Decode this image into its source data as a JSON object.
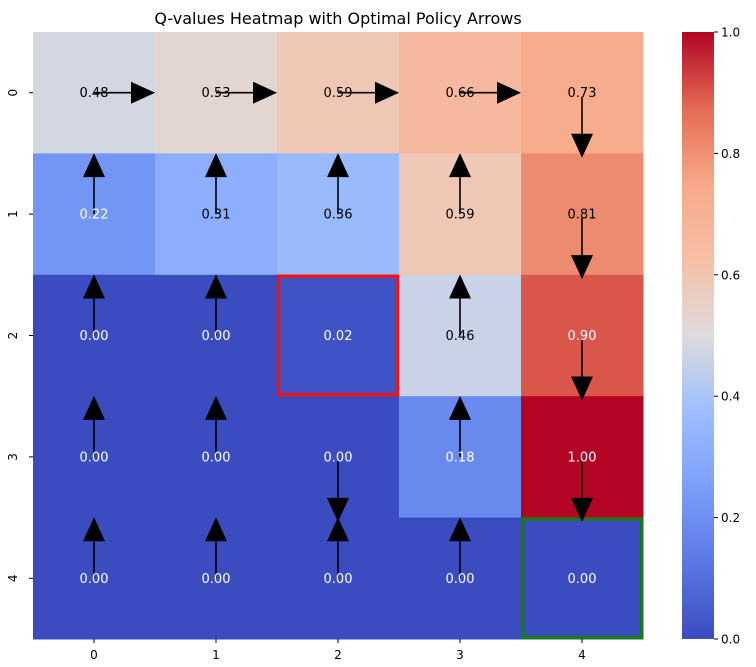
{
  "chart_data": {
    "type": "heatmap",
    "title": "Q-values Heatmap with Optimal Policy Arrows",
    "x_ticks": [
      "0",
      "1",
      "2",
      "3",
      "4"
    ],
    "y_ticks": [
      "0",
      "1",
      "2",
      "3",
      "4"
    ],
    "values": [
      [
        0.48,
        0.53,
        0.59,
        0.66,
        0.73
      ],
      [
        0.22,
        0.31,
        0.36,
        0.59,
        0.81
      ],
      [
        0.0,
        0.0,
        0.02,
        0.46,
        0.9
      ],
      [
        0.0,
        0.0,
        0.0,
        0.18,
        1.0
      ],
      [
        0.0,
        0.0,
        0.0,
        0.0,
        0.0
      ]
    ],
    "labels": [
      [
        "0.48",
        "0.53",
        "0.59",
        "0.66",
        "0.73"
      ],
      [
        "0.22",
        "0.31",
        "0.36",
        "0.59",
        "0.81"
      ],
      [
        "0.00",
        "0.00",
        "0.02",
        "0.46",
        "0.90"
      ],
      [
        "0.00",
        "0.00",
        "0.00",
        "0.18",
        "1.00"
      ],
      [
        "0.00",
        "0.00",
        "0.00",
        "0.00",
        "0.00"
      ]
    ],
    "policy": [
      [
        "right",
        "right",
        "right",
        "right",
        "down"
      ],
      [
        "up",
        "up",
        "up",
        "up",
        "down"
      ],
      [
        "up",
        "up",
        "none",
        "up",
        "down"
      ],
      [
        "up",
        "up",
        "down",
        "up",
        "down"
      ],
      [
        "up",
        "up",
        "up",
        "up",
        "none"
      ]
    ],
    "highlights": [
      {
        "row": 2,
        "col": 2,
        "color": "#e8161b"
      },
      {
        "row": 4,
        "col": 4,
        "color": "#1a7a1a"
      }
    ],
    "colormap": "coolwarm",
    "vmin": 0.0,
    "vmax": 1.0,
    "colorbar_ticks": [
      "0.0",
      "0.2",
      "0.4",
      "0.6",
      "0.8",
      "1.0"
    ]
  }
}
